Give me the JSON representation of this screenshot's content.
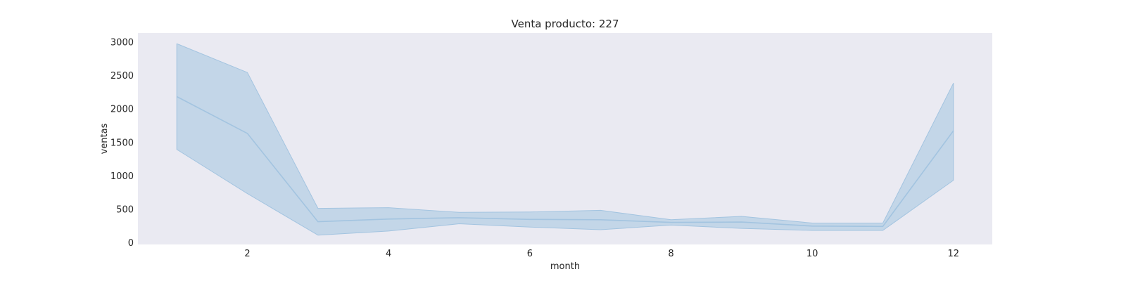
{
  "chart_data": {
    "type": "line",
    "title": "Venta producto: 227",
    "xlabel": "month",
    "ylabel": "ventas",
    "xlim": [
      0.45,
      12.55
    ],
    "ylim": [
      -30,
      3130
    ],
    "x_ticks": [
      2,
      4,
      6,
      8,
      10,
      12
    ],
    "y_ticks": [
      0,
      500,
      1000,
      1500,
      2000,
      2500,
      3000
    ],
    "grid": false,
    "legend": false,
    "background": "#eaeaf2",
    "series": [
      {
        "x": [
          1,
          2,
          3,
          4,
          5,
          6,
          7,
          8,
          9,
          10,
          11,
          12
        ],
        "y": [
          2180,
          1630,
          310,
          350,
          370,
          345,
          340,
          300,
          305,
          245,
          240,
          1670
        ],
        "ci_upper": [
          2970,
          2540,
          510,
          520,
          450,
          455,
          480,
          340,
          390,
          290,
          290,
          2380
        ],
        "ci_lower": [
          1390,
          730,
          110,
          170,
          280,
          230,
          190,
          260,
          210,
          180,
          180,
          930
        ],
        "color": "#a3c4e0"
      }
    ]
  }
}
